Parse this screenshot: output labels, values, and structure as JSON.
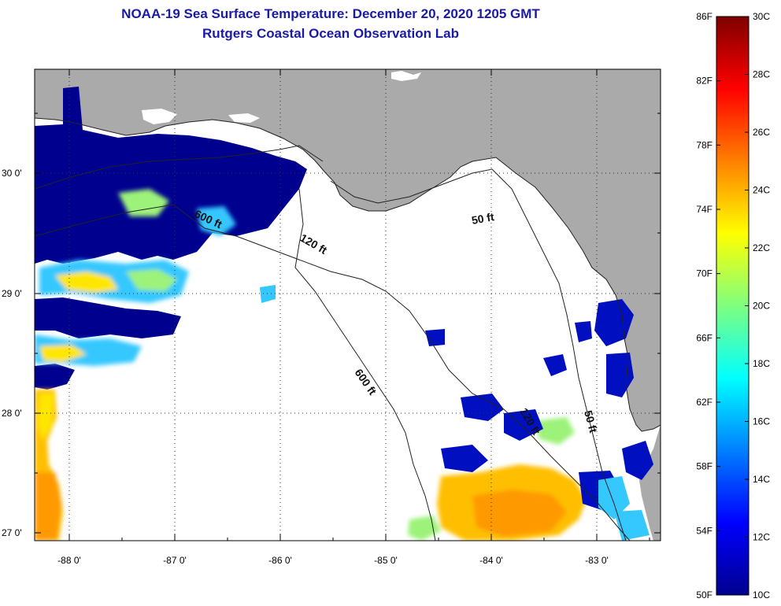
{
  "title": {
    "line1": "NOAA-19 Sea Surface Temperature:  December 20, 2020 1205 GMT",
    "line2": "Rutgers Coastal Ocean Observation Lab"
  },
  "axes": {
    "lat_ticks": [
      "30 0'",
      "29 0'",
      "28 0'",
      "27 0'"
    ],
    "lon_ticks": [
      "-88 0'",
      "-87 0'",
      "-86 0'",
      "-85 0'",
      "-84 0'",
      "-83 0'"
    ]
  },
  "contours": {
    "labels": [
      "600 ft",
      "120 ft",
      "50 ft",
      "600 ft",
      "120 ft",
      "50 ft"
    ]
  },
  "colorbar": {
    "fahrenheit": [
      "86F",
      "82F",
      "78F",
      "74F",
      "70F",
      "66F",
      "62F",
      "58F",
      "54F",
      "50F"
    ],
    "celsius": [
      "30C",
      "28C",
      "26C",
      "24C",
      "22C",
      "20C",
      "18C",
      "16C",
      "14C",
      "12C",
      "10C"
    ]
  },
  "colors": {
    "land": "#aaaaaa",
    "water": "#ffffff",
    "title": "#1a1aa8",
    "cold": "#00008f",
    "warm": "#ff9900"
  }
}
